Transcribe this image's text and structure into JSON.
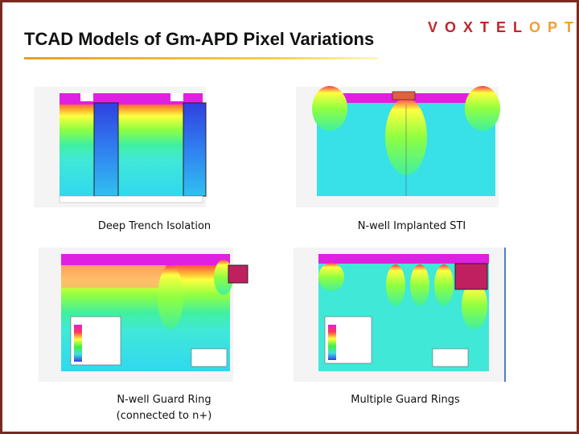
{
  "header": {
    "title": "TCAD Models of Gm-APD Pixel Variations",
    "logo": [
      "VOXTEL",
      "OPTO"
    ]
  },
  "panels": [
    {
      "caption": [
        "Deep Trench Isolation"
      ]
    },
    {
      "caption": [
        "N-well Implanted STI"
      ]
    },
    {
      "caption": [
        "N-well Guard Ring",
        "(connected to n+)"
      ]
    },
    {
      "caption": [
        "Multiple Guard Rings"
      ]
    }
  ]
}
